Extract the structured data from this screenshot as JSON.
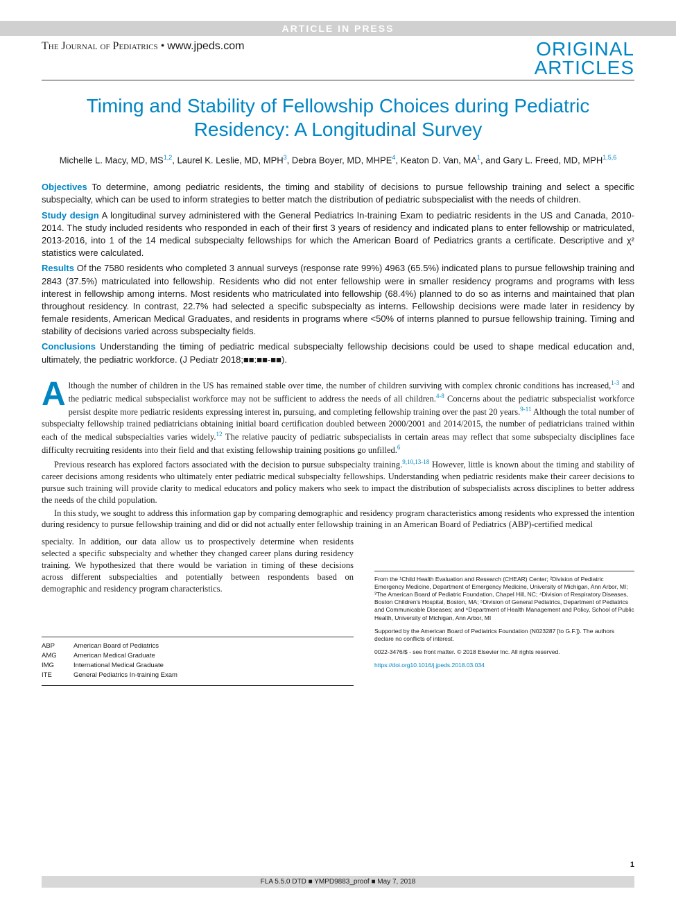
{
  "colors": {
    "accent": "#0085c3",
    "text": "#1a1a1a",
    "banner_bg": "#d0d0d0",
    "banner_text": "#ffffff",
    "footer_bg": "#d8d8d8",
    "rule": "#333333"
  },
  "typography": {
    "title_fontsize": 28,
    "body_fontsize": 12.5,
    "abstract_fontsize": 13,
    "dropcap_fontsize": 48,
    "footnote_fontsize": 8.5
  },
  "banner": {
    "text": "ARTICLE IN PRESS"
  },
  "header": {
    "journal": "The Journal of Pediatrics",
    "url": "www.jpeds.com",
    "article_type_line1": "ORIGINAL",
    "article_type_line2": "ARTICLES"
  },
  "title": "Timing and Stability of Fellowship Choices during Pediatric Residency: A Longitudinal Survey",
  "authors_html": "Michelle L. Macy, MD, MS<sup>1,2</sup>, Laurel K. Leslie, MD, MPH<sup>3</sup>, Debra Boyer, MD, MHPE<sup>4</sup>, Keaton D. Van, MA<sup>1</sup>, and Gary L. Freed, MD, MPH<sup>1,5,6</sup>",
  "abstract": {
    "objectives": {
      "label": "Objectives",
      "text": "To determine, among pediatric residents, the timing and stability of decisions to pursue fellowship training and select a specific subspecialty, which can be used to inform strategies to better match the distribution of pediatric subspecialist with the needs of children."
    },
    "study_design": {
      "label": "Study design",
      "text": "A longitudinal survey administered with the General Pediatrics In-training Exam to pediatric residents in the US and Canada, 2010-2014. The study included residents who responded in each of their first 3 years of residency and indicated plans to enter fellowship or matriculated, 2013-2016, into 1 of the 14 medical subspecialty fellowships for which the American Board of Pediatrics grants a certificate. Descriptive and χ² statistics were calculated."
    },
    "results": {
      "label": "Results",
      "text": "Of the 7580 residents who completed 3 annual surveys (response rate 99%) 4963 (65.5%) indicated plans to pursue fellowship training and 2843 (37.5%) matriculated into fellowship. Residents who did not enter fellowship were in smaller residency programs and programs with less interest in fellowship among interns. Most residents who matriculated into fellowship (68.4%) planned to do so as interns and maintained that plan throughout residency. In contrast, 22.7% had selected a specific subspecialty as interns. Fellowship decisions were made later in residency by female residents, American Medical Graduates, and residents in programs where <50% of interns planned to pursue fellowship training. Timing and stability of decisions varied across subspecialty fields."
    },
    "conclusions": {
      "label": "Conclusions",
      "text": "Understanding the timing of pediatric medical subspecialty fellowship decisions could be used to shape medical education and, ultimately, the pediatric workforce. (J Pediatr 2018;■■:■■-■■)."
    }
  },
  "body": {
    "p1": "lthough the number of children in the US has remained stable over time, the number of children surviving with complex chronic conditions has increased,<sup>1-3</sup> and the pediatric medical subspecialist workforce may not be sufficient to address the needs of all children.<sup>4-8</sup> Concerns about the pediatric subspecialist workforce persist despite more pediatric residents expressing interest in, pursuing, and completing fellowship training over the past 20 years.<sup>9-11</sup> Although the total number of subspecialty fellowship trained pediatricians obtaining initial board certification doubled between 2000/2001 and 2014/2015, the number of pediatricians trained within each of the medical subspecialties varies widely.<sup>12</sup> The relative paucity of pediatric subspecialists in certain areas may reflect that some subspecialty disciplines face difficulty recruiting residents into their field and that existing fellowship training positions go unfilled.<sup>6</sup>",
    "p2": "Previous research has explored factors associated with the decision to pursue subspecialty training.<sup>9,10,13-18</sup> However, little is known about the timing and stability of career decisions among residents who ultimately enter pediatric medical subspecialty fellowships. Understanding when pediatric residents make their career decisions to pursue such training will provide clarity to medical educators and policy makers who seek to impact the distribution of subspecialists across disciplines to better address the needs of the child population.",
    "p3": "In this study, we sought to address this information gap by comparing demographic and residency program characteristics among residents who expressed the intention during residency to pursue fellowship training and did or did not actually enter fellowship training in an American Board of Pediatrics (ABP)-certified medical",
    "p3b": "specialty. In addition, our data allow us to prospectively determine when residents selected a specific subspecialty and whether they changed career plans during residency training. We hypothesized that there would be variation in timing of these decisions across different subspecialties and potentially between respondents based on demographic and residency program characteristics."
  },
  "abbreviations": [
    {
      "key": "ABP",
      "val": "American Board of Pediatrics"
    },
    {
      "key": "AMG",
      "val": "American Medical Graduate"
    },
    {
      "key": "IMG",
      "val": "International Medical Graduate"
    },
    {
      "key": "ITE",
      "val": "General Pediatrics In-training Exam"
    }
  ],
  "affiliations": "From the ¹Child Health Evaluation and Research (CHEAR) Center; ²Division of Pediatric Emergency Medicine, Department of Emergency Medicine, University of Michigan, Ann Arbor, MI; ³The American Board of Pediatric Foundation, Chapel Hill, NC; ⁴Division of Respiratory Diseases, Boston Children's Hospital, Boston, MA; ⁵Division of General Pediatrics, Department of Pediatrics and Communicable Diseases; and ⁶Department of Health Management and Policy, School of Public Health, University of Michigan, Ann Arbor, MI",
  "funding": "Supported by the American Board of Pediatrics Foundation (N023287 [to G.F.]). The authors declare no conflicts of interest.",
  "copyright": "0022-3476/$ - see front matter. © 2018 Elsevier Inc. All rights reserved.",
  "doi": "https://doi.org10.1016/j.jpeds.2018.03.034",
  "page_number": "1",
  "footer": "FLA 5.5.0 DTD ■ YMPD9883_proof ■ May 7, 2018"
}
